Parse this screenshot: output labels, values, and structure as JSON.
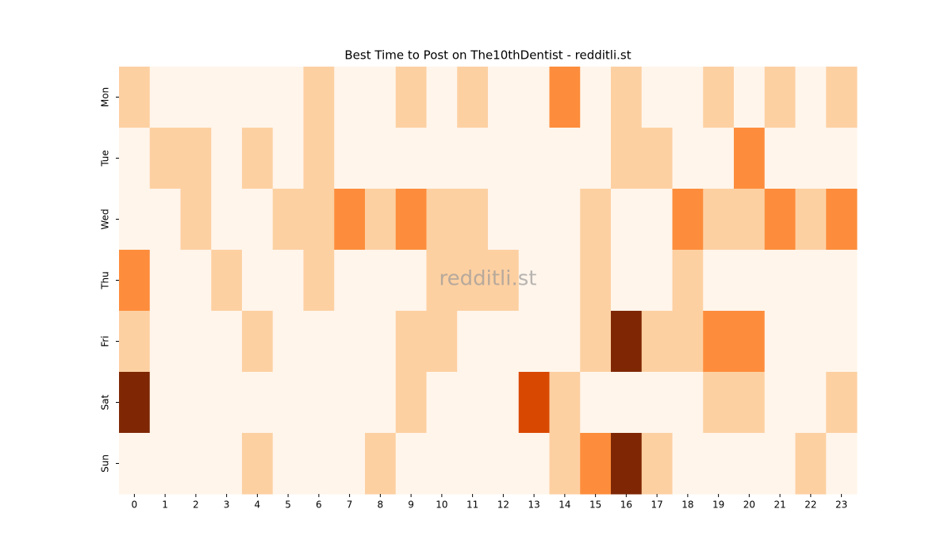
{
  "chart_data": {
    "type": "heatmap",
    "title": "Best Time to Post on The10thDentist - redditli.st",
    "watermark": "redditli.st",
    "x_categories": [
      "0",
      "1",
      "2",
      "3",
      "4",
      "5",
      "6",
      "7",
      "8",
      "9",
      "10",
      "11",
      "12",
      "13",
      "14",
      "15",
      "16",
      "17",
      "18",
      "19",
      "20",
      "21",
      "22",
      "23"
    ],
    "y_categories": [
      "Mon",
      "Tue",
      "Wed",
      "Thu",
      "Fri",
      "Sat",
      "Sun"
    ],
    "values": [
      [
        1,
        0,
        0,
        0,
        0,
        0,
        1,
        0,
        0,
        1,
        0,
        1,
        0,
        0,
        2,
        0,
        1,
        0,
        0,
        1,
        0,
        1,
        0,
        1
      ],
      [
        0,
        1,
        1,
        0,
        1,
        0,
        1,
        0,
        0,
        0,
        0,
        0,
        0,
        0,
        0,
        0,
        1,
        1,
        0,
        0,
        2,
        0,
        0,
        0
      ],
      [
        0,
        0,
        1,
        0,
        0,
        1,
        1,
        2,
        1,
        2,
        1,
        1,
        0,
        0,
        0,
        1,
        0,
        0,
        2,
        1,
        1,
        2,
        1,
        2
      ],
      [
        2,
        0,
        0,
        1,
        0,
        0,
        1,
        0,
        0,
        0,
        1,
        1,
        1,
        0,
        0,
        1,
        0,
        0,
        1,
        0,
        0,
        0,
        0,
        0
      ],
      [
        1,
        0,
        0,
        0,
        1,
        0,
        0,
        0,
        0,
        1,
        1,
        0,
        0,
        0,
        0,
        1,
        4,
        1,
        1,
        2,
        2,
        0,
        0,
        0
      ],
      [
        4,
        0,
        0,
        0,
        0,
        0,
        0,
        0,
        0,
        1,
        0,
        0,
        0,
        3,
        1,
        0,
        0,
        0,
        0,
        1,
        1,
        0,
        0,
        1
      ],
      [
        0,
        0,
        0,
        0,
        1,
        0,
        0,
        0,
        1,
        0,
        0,
        0,
        0,
        0,
        1,
        2,
        4,
        1,
        0,
        0,
        0,
        0,
        1,
        0
      ]
    ],
    "zlim": [
      0,
      4
    ],
    "colormap": [
      "#fff5eb",
      "#fdd0a2",
      "#fd8d3c",
      "#d94801",
      "#7f2704"
    ]
  }
}
